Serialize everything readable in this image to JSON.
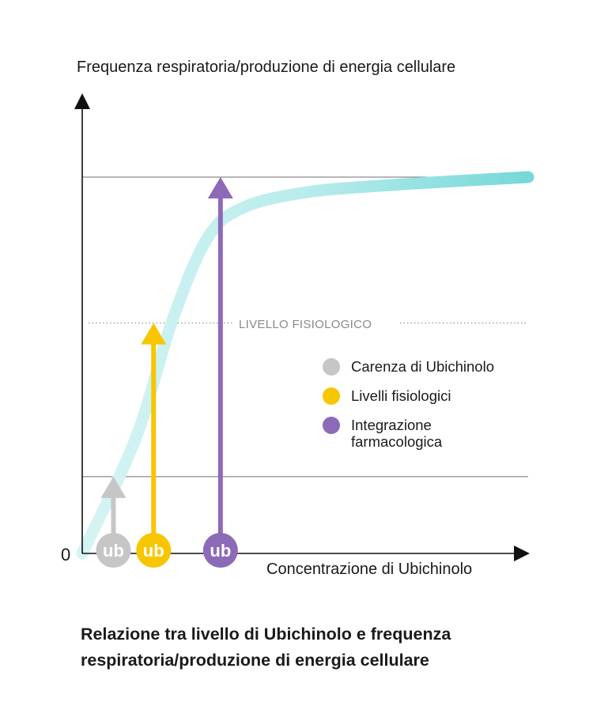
{
  "chart_data": {
    "type": "line",
    "title": "Relazione tra livello di Ubichinolo e frequenza respiratoria/produzione di energia cellulare",
    "title_lines": [
      "Relazione tra livello di Ubichinolo e frequenza",
      "respiratoria/produzione di energia cellulare"
    ],
    "ylabel": "Frequenza respiratoria/produzione di energia cellulare",
    "xlabel": "Concentrazione di Ubichinolo",
    "origin_label": "0",
    "reference_line_label": "LIVELLO FISIOLOGICO",
    "series": [
      {
        "name": "",
        "x": [
          0,
          0.12,
          0.2,
          0.28,
          0.36,
          0.5,
          0.7,
          1.0
        ],
        "y": [
          0,
          0.3,
          0.6,
          0.82,
          0.9,
          0.94,
          0.96,
          0.98
        ]
      }
    ],
    "markers": [
      {
        "name": "Carenza di Ubichinolo",
        "icon_text": "ub",
        "x": 0.07,
        "y": 0.2,
        "color": "#c6c6c6"
      },
      {
        "name": "Livelli fisiologici",
        "icon_text": "ub",
        "x": 0.16,
        "y": 0.6,
        "color": "#f7c600"
      },
      {
        "name": "Integrazione farmacologica",
        "icon_text": "ub",
        "x": 0.31,
        "y": 0.98,
        "color": "#8d6ab8"
      }
    ],
    "reference_lines": {
      "lower": 0.2,
      "physiological": 0.6,
      "upper": 0.98
    },
    "curve_color": "#7fdcdc",
    "legend": [
      {
        "label": "Carenza di Ubichinolo",
        "color": "#c6c6c6"
      },
      {
        "label": "Livelli fisiologici",
        "color": "#f7c600"
      },
      {
        "label": "Integrazione\nfarmacologica",
        "color": "#8d6ab8"
      }
    ],
    "ylim": [
      0,
      1.2
    ],
    "xlim": [
      0,
      1.0
    ],
    "grid": false
  }
}
